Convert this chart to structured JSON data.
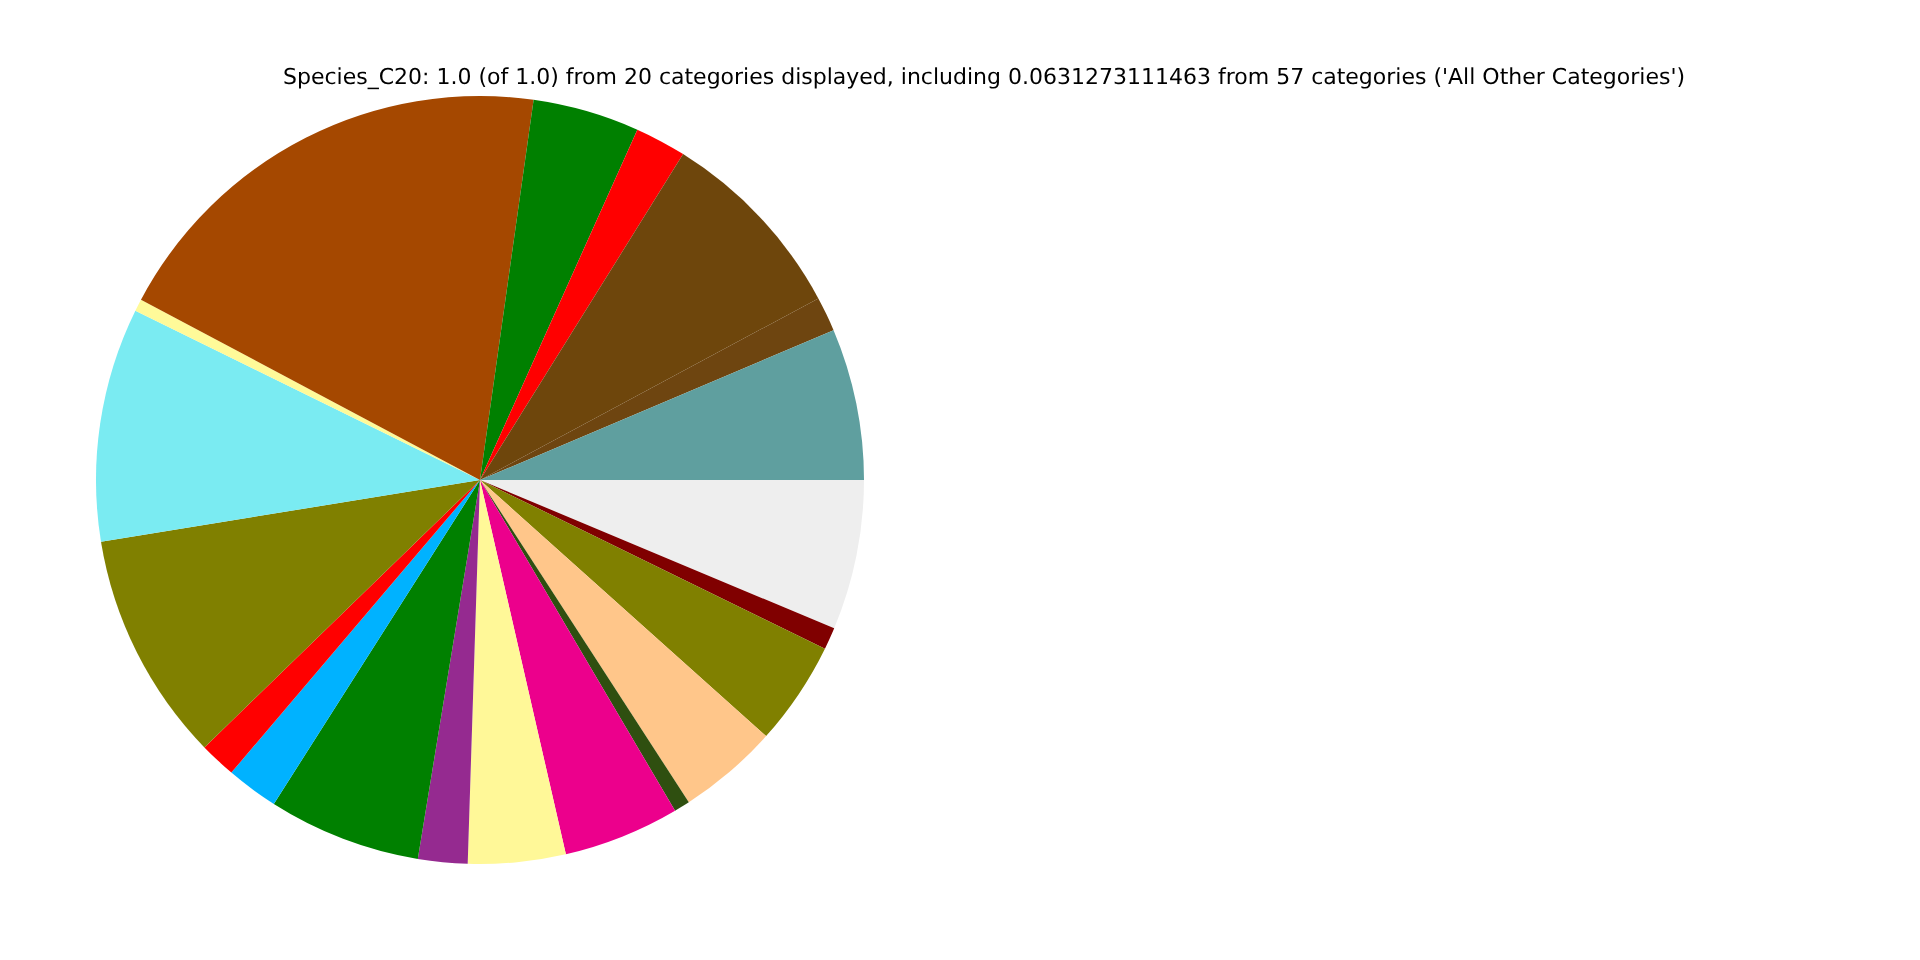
{
  "chart_data": {
    "type": "pie",
    "title": "Species_C20: 1.0 (of 1.0) from 20 categories displayed, including 0.0631273111463 from 57 categories ('All Other Categories')",
    "categories": [
      null,
      null,
      null,
      null,
      null,
      null,
      null,
      null,
      null,
      null,
      null,
      null,
      null,
      null,
      null,
      null,
      null,
      null,
      null,
      null
    ],
    "values": [
      6.38,
      1.46,
      8.29,
      2.15,
      4.49,
      19.45,
      0.51,
      9.84,
      9.69,
      1.53,
      2.19,
      6.43,
      2.08,
      4.1,
      4.89,
      0.67,
      4.23,
      4.38,
      0.93,
      6.31
    ],
    "colors": [
      "#5f9f9f",
      "#6e4510",
      "#6e460c",
      "#ff0000",
      "#008000",
      "#a54800",
      "#fffa99",
      "#7aebf2",
      "#808000",
      "#ff0000",
      "#00b2ff",
      "#008000",
      "#952a90",
      "#fff898",
      "#ec008c",
      "#2f4f10",
      "#ffc68a",
      "#808000",
      "#800000",
      "#eeeeee"
    ],
    "legend": false
  }
}
